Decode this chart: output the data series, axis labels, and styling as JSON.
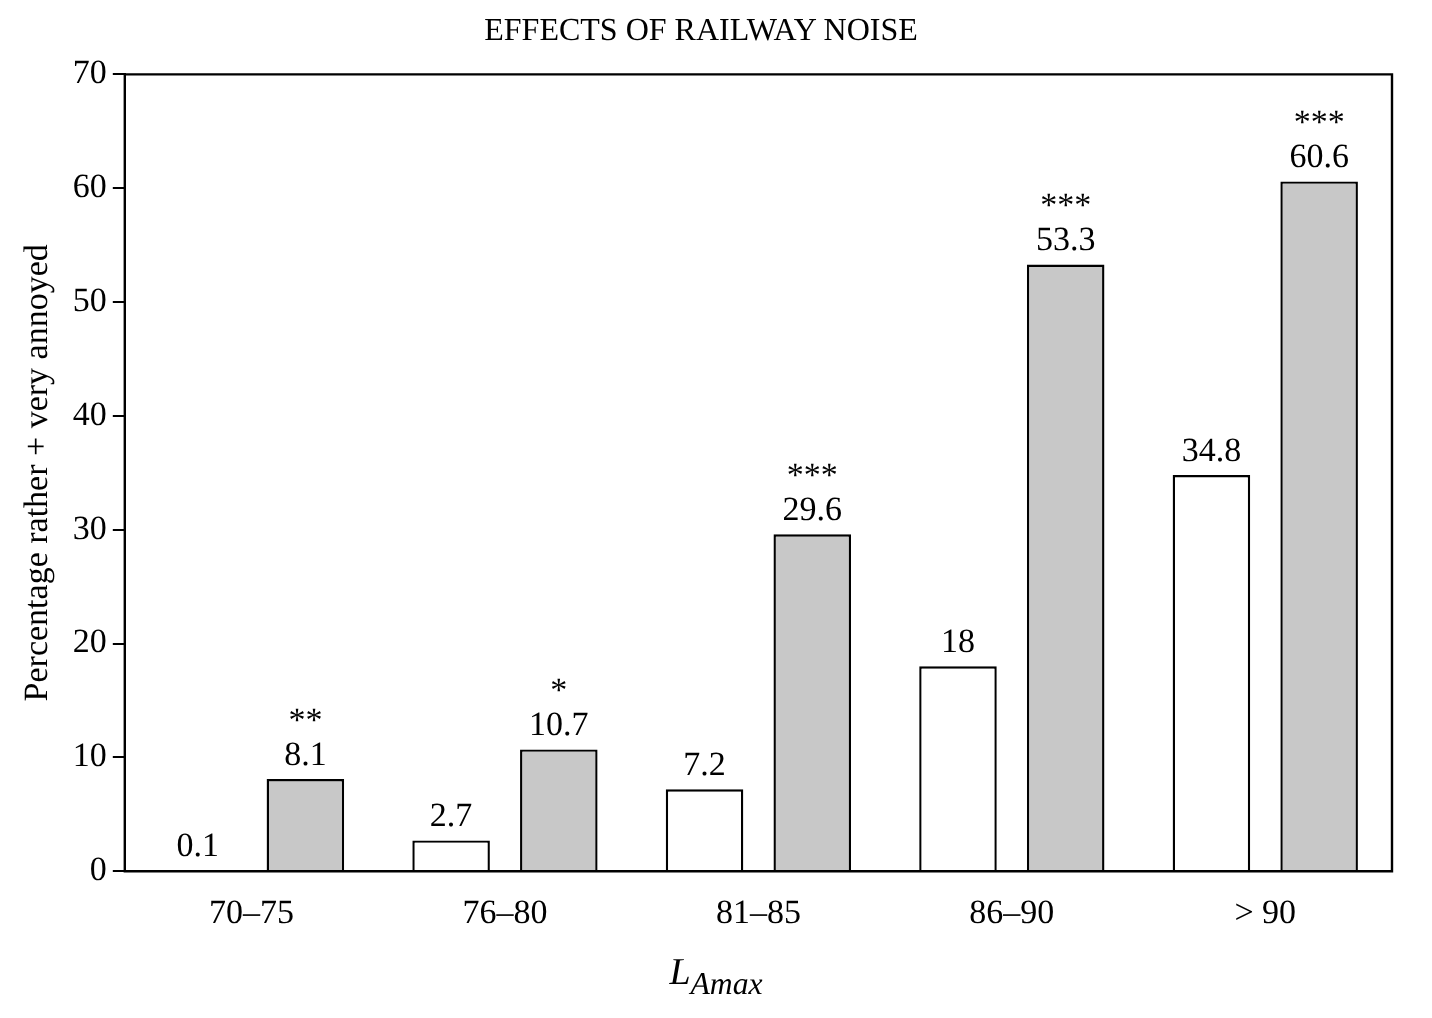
{
  "chart_data": {
    "type": "bar",
    "title": "EFFECTS OF RAILWAY NOISE",
    "xlabel": "L$_{Amax}$",
    "ylabel": "Percentage rather + very annoyed",
    "categories": [
      "70–75",
      "76–80",
      "81–85",
      "86–90",
      "> 90"
    ],
    "series": [
      {
        "color": "#ffffff",
        "values": [
          0.1,
          2.7,
          7.2,
          18,
          34.8
        ]
      },
      {
        "color": "#c8c8c8",
        "values": [
          8.1,
          10.7,
          29.6,
          53.3,
          60.6
        ]
      }
    ],
    "ylim": [
      0,
      70
    ],
    "yticks": [
      0,
      10,
      20,
      30,
      40,
      50,
      60,
      70
    ],
    "grid": false,
    "data_labels": true,
    "annotations": [
      "**",
      "*",
      "***",
      "***",
      "***"
    ]
  }
}
